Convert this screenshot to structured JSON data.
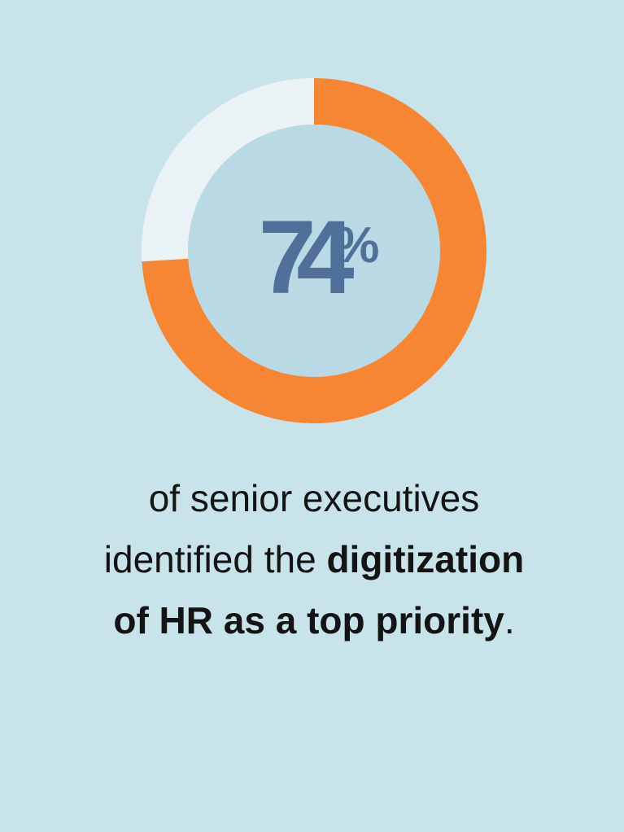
{
  "chart_data": {
    "type": "donut",
    "values": [
      74
    ],
    "value_labels": [
      "74%"
    ],
    "color": "#f68634",
    "track_color": "#eaf2f6",
    "hole_color": "#b9dae4",
    "caption": [
      [
        {
          "text": "of senior executives",
          "bold": false
        }
      ],
      [
        {
          "text": "identified the ",
          "bold": false
        },
        {
          "text": "digitization",
          "bold": true
        }
      ],
      [
        {
          "text": "of HR as a top priority",
          "bold": true
        },
        {
          "text": ".",
          "bold": false
        }
      ]
    ]
  }
}
